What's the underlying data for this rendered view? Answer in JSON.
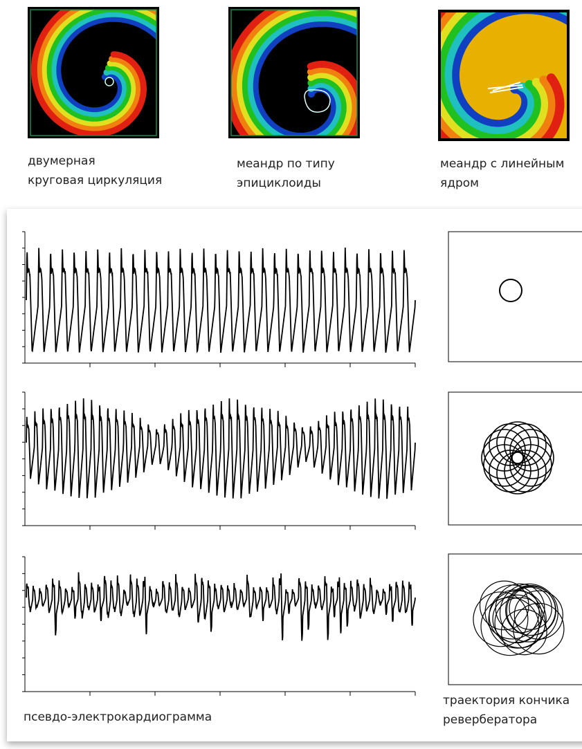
{
  "panels": [
    {
      "caption": [
        "двумерная",
        "круговая циркуляция"
      ]
    },
    {
      "caption": [
        "меандр по типу",
        "эпициклоиды"
      ]
    },
    {
      "caption": [
        "меандр с линейным",
        "ядром"
      ]
    }
  ],
  "ecg_caption": "псевдо-электрокардиограмма",
  "trajectory_caption": [
    "траектория кончика",
    "ревербератора"
  ]
}
